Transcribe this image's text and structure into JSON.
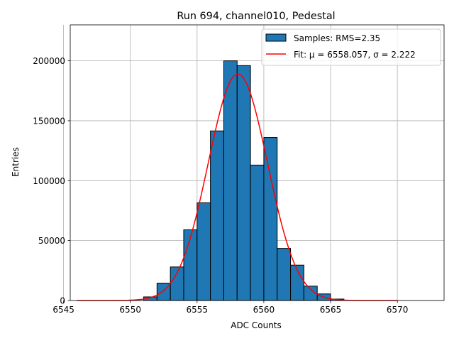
{
  "chart_data": {
    "type": "bar",
    "title": "Run 694, channel010, Pedestal",
    "xlabel": "ADC Counts",
    "ylabel": "Entries",
    "xlim": [
      6545.5,
      6573.5
    ],
    "ylim": [
      0,
      230000
    ],
    "grid": true,
    "legend_position": "top-right",
    "x_ticks": [
      6545,
      6550,
      6555,
      6560,
      6565,
      6570
    ],
    "y_ticks": [
      0,
      50000,
      100000,
      150000,
      200000
    ],
    "bins": [
      {
        "left": 6551,
        "right": 6552,
        "value": 3000
      },
      {
        "left": 6552,
        "right": 6553,
        "value": 14500
      },
      {
        "left": 6553,
        "right": 6554,
        "value": 28000
      },
      {
        "left": 6554,
        "right": 6555,
        "value": 59000
      },
      {
        "left": 6555,
        "right": 6556,
        "value": 81500
      },
      {
        "left": 6556,
        "right": 6557,
        "value": 141500
      },
      {
        "left": 6557,
        "right": 6558,
        "value": 200000
      },
      {
        "left": 6558,
        "right": 6559,
        "value": 196000
      },
      {
        "left": 6559,
        "right": 6560,
        "value": 113000
      },
      {
        "left": 6560,
        "right": 6561,
        "value": 136000
      },
      {
        "left": 6561,
        "right": 6562,
        "value": 43500
      },
      {
        "left": 6562,
        "right": 6563,
        "value": 29500
      },
      {
        "left": 6563,
        "right": 6564,
        "value": 12000
      },
      {
        "left": 6564,
        "right": 6565,
        "value": 5500
      },
      {
        "left": 6565,
        "right": 6566,
        "value": 1200
      }
    ],
    "fit": {
      "mu": 6558.057,
      "sigma": 2.222,
      "amplitude": 189000,
      "x_range": [
        6546,
        6570
      ]
    },
    "series": [
      {
        "name": "Samples: RMS=2.35",
        "kind": "histogram",
        "color": "#1f77b4"
      },
      {
        "name": "Fit: μ = 6558.057, σ = 2.222",
        "kind": "line",
        "color": "#ff0000"
      }
    ]
  }
}
